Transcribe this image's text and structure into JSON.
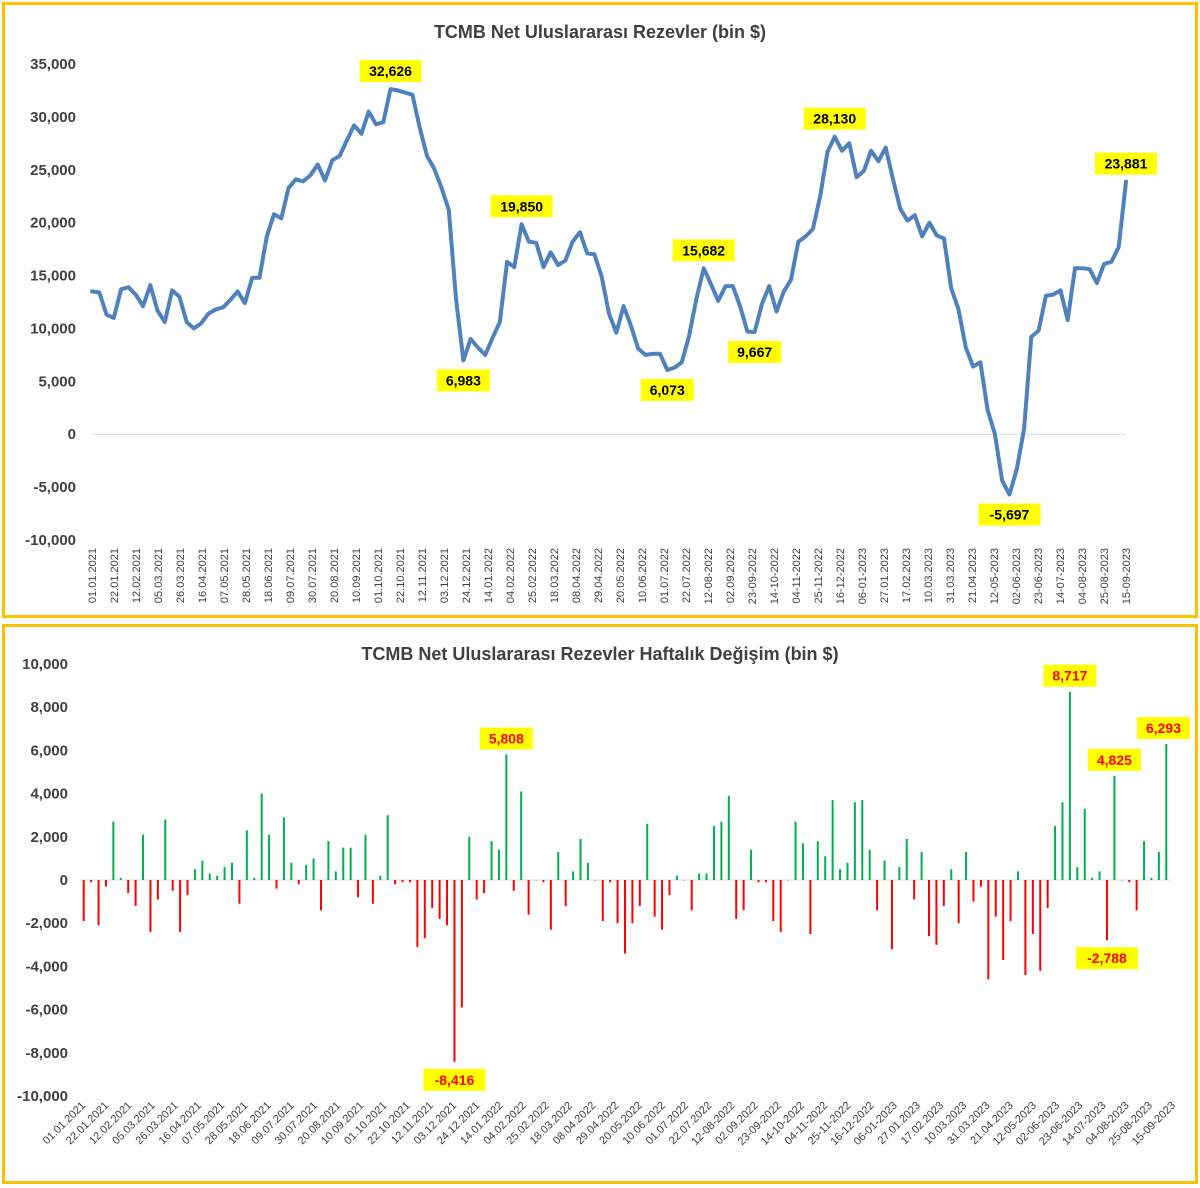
{
  "colors": {
    "frame": "#ffc000",
    "line": "#4f81bd",
    "positive": "#00b050",
    "negative": "#ff0000",
    "label_bg": "#ffff00",
    "label_red": "#ff0000",
    "text": "#404040",
    "axis": "#d9d9d9"
  },
  "chart_data": [
    {
      "type": "line",
      "title": "TCMB Net Uluslararası Rezevler (bin $)",
      "xlabel": "",
      "ylabel": "",
      "ylim": [
        -10000,
        35000
      ],
      "y_ticks": [
        35000,
        30000,
        25000,
        20000,
        15000,
        10000,
        5000,
        0,
        -5000,
        -10000
      ],
      "y_tick_labels": [
        "35,000",
        "30,000",
        "25,000",
        "20,000",
        "15,000",
        "10,000",
        "5,000",
        "0",
        "-5,000",
        "-10,000"
      ],
      "x_tick_labels": [
        "01.01.2021",
        "22.01.2021",
        "12.02.2021",
        "05.03.2021",
        "26.03.2021",
        "16.04.2021",
        "07.05.2021",
        "28.05.2021",
        "18.06.2021",
        "09.07.2021",
        "30.07.2021",
        "20.08.2021",
        "10.09.2021",
        "01.10.2021",
        "22.10.2021",
        "12.11.2021",
        "03.12.2021",
        "24.12.2021",
        "14.01.2022",
        "04.02.2022",
        "25.02.2022",
        "18.03.2022",
        "08.04.2022",
        "29.04.2022",
        "20.05.2022",
        "10.06.2022",
        "01.07.2022",
        "22.07.2022",
        "12-08-2022",
        "02.09.2022",
        "23-09-2022",
        "14-10-2022",
        "04-11-2022",
        "25-11-2022",
        "16-12-2022",
        "06-01-2023",
        "27.01.2023",
        "17.02.2023",
        "10.03.2023",
        "31.03.2023",
        "21.04.2023",
        "12-05-2023",
        "02-06-2023",
        "23-06-2023",
        "14-07-2023",
        "04-08-2023",
        "25-08-2023",
        "15-09-2023"
      ],
      "grid": false,
      "values": [
        13500,
        13400,
        11300,
        11000,
        13700,
        13900,
        13200,
        12100,
        14100,
        11700,
        10600,
        13600,
        13000,
        10600,
        10000,
        10500,
        11400,
        11800,
        12000,
        12700,
        13500,
        12400,
        14800,
        14800,
        18700,
        20800,
        20400,
        23300,
        24100,
        23900,
        24500,
        25500,
        24000,
        25900,
        26300,
        27800,
        29200,
        28400,
        30500,
        29300,
        29500,
        32626,
        32500,
        32300,
        32100,
        29000,
        26300,
        25100,
        23300,
        21200,
        12700,
        6983,
        9000,
        8200,
        7500,
        9100,
        10600,
        16300,
        15800,
        19850,
        18200,
        18100,
        15800,
        17200,
        16000,
        16400,
        18200,
        19100,
        17100,
        17000,
        14900,
        11400,
        9600,
        12100,
        10300,
        8100,
        7500,
        7600,
        7600,
        6073,
        6300,
        6800,
        9300,
        12800,
        15682,
        14200,
        12600,
        14000,
        14000,
        12100,
        9700,
        9667,
        12300,
        14000,
        11600,
        13500,
        14600,
        18200,
        18700,
        19400,
        22500,
        26700,
        28130,
        26800,
        27500,
        24300,
        24900,
        26800,
        25800,
        27100,
        24100,
        21300,
        20200,
        20700,
        18700,
        20000,
        18800,
        18500,
        13800,
        11800,
        8200,
        6400,
        6800,
        2300,
        0,
        -4400,
        -5697,
        -3300,
        500,
        9200,
        9800,
        13100,
        13200,
        13600,
        10800,
        15700,
        15700,
        15600,
        14300,
        16100,
        16300,
        17700,
        23881
      ],
      "annotations": [
        {
          "index": 41,
          "label": "32,626"
        },
        {
          "index": 51,
          "label": "6,983"
        },
        {
          "index": 59,
          "label": "19,850"
        },
        {
          "index": 79,
          "label": "6,073"
        },
        {
          "index": 84,
          "label": "15,682"
        },
        {
          "index": 91,
          "label": "9,667"
        },
        {
          "index": 102,
          "label": "28,130"
        },
        {
          "index": 126,
          "label": "-5,697"
        },
        {
          "index": 142,
          "label": "23,881"
        }
      ]
    },
    {
      "type": "bar",
      "title": "TCMB Net Uluslararası Rezevler Haftalık Değişim (bin $)",
      "xlabel": "",
      "ylabel": "",
      "ylim": [
        -10000,
        10000
      ],
      "y_ticks": [
        10000,
        8000,
        6000,
        4000,
        2000,
        0,
        -2000,
        -4000,
        -6000,
        -8000,
        -10000
      ],
      "y_tick_labels": [
        "10,000",
        "8,000",
        "6,000",
        "4,000",
        "2,000",
        "0",
        "-2,000",
        "-4,000",
        "-6,000",
        "-8,000",
        "-10,000"
      ],
      "x_tick_labels": [
        "01.01.2021",
        "22.01.2021",
        "12.02.2021",
        "05.03.2021",
        "26.03.2021",
        "16.04.2021",
        "07.05.2021",
        "28.05.2021",
        "18.06.2021",
        "09.07.2021",
        "30.07.2021",
        "20.08.2021",
        "10.09.2021",
        "01.10.2021",
        "22.10.2021",
        "12.11.2021",
        "03.12.2021",
        "24.12.2021",
        "14.01.2022",
        "04.02.2022",
        "25.02.2022",
        "18.03.2022",
        "08.04.2022",
        "29.04.2022",
        "20.05.2022",
        "10.06.2022",
        "01.07.2022",
        "22.07.2022",
        "12-08-2022",
        "02.09.2022",
        "23-09-2022",
        "14-10-2022",
        "04-11-2022",
        "25-11-2022",
        "16-12-2022",
        "06-01-2023",
        "27.01.2023",
        "17.02.2023",
        "10.03.2023",
        "31.03.2023",
        "21.04.2023",
        "12-05-2023",
        "02-06-2023",
        "23-06-2023",
        "14-07-2023",
        "04-08-2023",
        "25-08-2023",
        "15-09-2023"
      ],
      "grid": false,
      "values": [
        -1900,
        -100,
        -2100,
        -300,
        2700,
        100,
        -600,
        -1200,
        2100,
        -2400,
        -900,
        2800,
        -500,
        -2400,
        -700,
        500,
        900,
        300,
        200,
        600,
        800,
        -1100,
        2300,
        100,
        4000,
        2100,
        -400,
        2900,
        800,
        -200,
        700,
        1000,
        -1400,
        1800,
        400,
        1500,
        1500,
        -800,
        2100,
        -1100,
        200,
        3000,
        -200,
        -100,
        -100,
        -3100,
        -2700,
        -1300,
        -1800,
        -2100,
        -8416,
        -5900,
        2000,
        -900,
        -600,
        1800,
        1400,
        5808,
        -500,
        4100,
        -1600,
        0,
        -100,
        -2300,
        1300,
        -1200,
        400,
        1900,
        800,
        0,
        -1900,
        -100,
        -2000,
        -3400,
        -2000,
        -1200,
        2600,
        -1700,
        -2300,
        -700,
        200,
        0,
        -1400,
        300,
        300,
        2500,
        2700,
        3900,
        -1800,
        -1400,
        1400,
        -100,
        -100,
        -1900,
        -2400,
        0,
        2700,
        1700,
        -2500,
        1800,
        1100,
        3700,
        500,
        800,
        3600,
        3700,
        1400,
        -1400,
        900,
        -3200,
        600,
        1900,
        -900,
        1300,
        -2600,
        -3000,
        -1200,
        500,
        -2000,
        1300,
        -1000,
        -300,
        -4600,
        -1700,
        -3700,
        -1900,
        400,
        -4400,
        -2500,
        -4200,
        -1300,
        2500,
        3600,
        8717,
        600,
        3300,
        100,
        400,
        -2788,
        4825,
        0,
        -100,
        -1400,
        1800,
        100,
        1300,
        6293
      ],
      "annotations": [
        {
          "index": 50,
          "label": "-8,416"
        },
        {
          "index": 57,
          "label": "5,808"
        },
        {
          "index": 133,
          "label": "8,717"
        },
        {
          "index": 138,
          "label": "-2,788"
        },
        {
          "index": 139,
          "label": "4,825"
        },
        {
          "index": 146,
          "label": "6,293"
        }
      ]
    }
  ]
}
